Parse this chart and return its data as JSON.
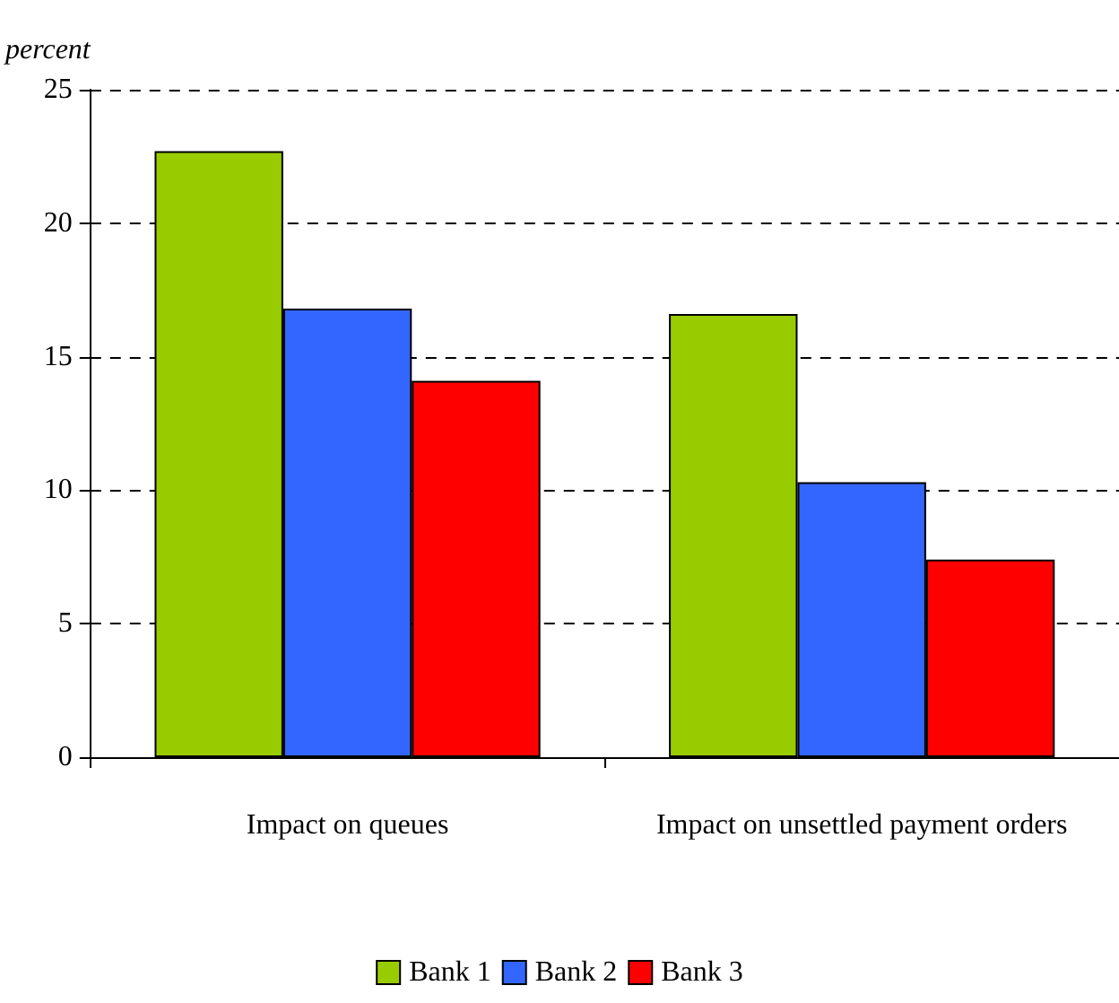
{
  "chart_data": {
    "type": "bar",
    "ylabel": "percent",
    "categories": [
      "Impact on queues",
      "Impact on unsettled payment orders"
    ],
    "series": [
      {
        "name": "Bank 1",
        "color": "#99cc00",
        "values": [
          22.7,
          16.6
        ]
      },
      {
        "name": "Bank 2",
        "color": "#3366ff",
        "values": [
          16.8,
          10.3
        ]
      },
      {
        "name": "Bank 3",
        "color": "#ff0000",
        "values": [
          14.1,
          7.4
        ]
      }
    ],
    "ylim": [
      0,
      25
    ],
    "yticks": [
      0,
      5,
      10,
      15,
      20,
      25
    ],
    "grid": "y",
    "legend": "bottom"
  }
}
